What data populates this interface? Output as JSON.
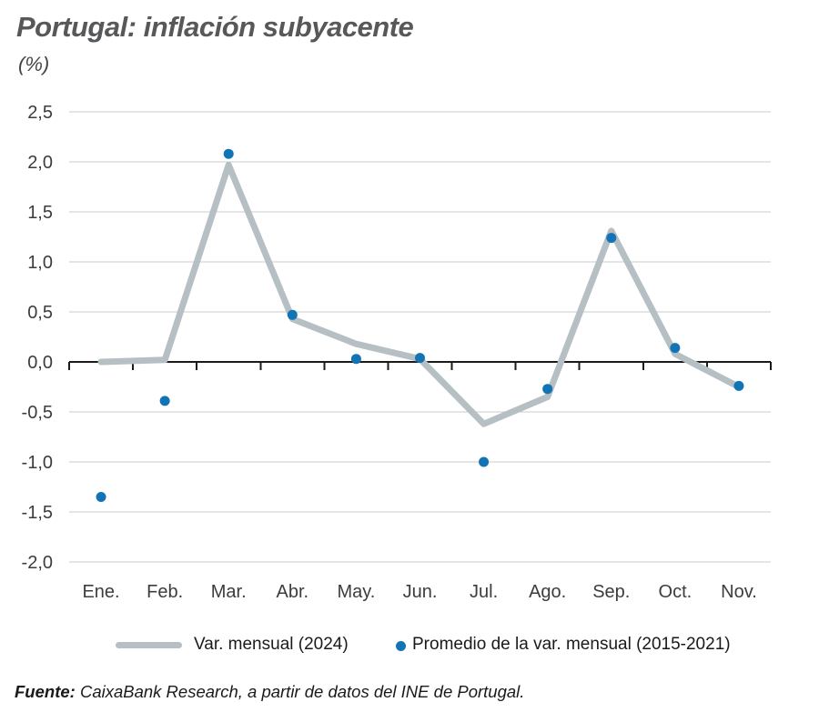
{
  "header": {
    "title": "Portugal: inflación subyacente",
    "unit_label": "(%)"
  },
  "chart_data": {
    "type": "line",
    "title": "Portugal: inflación subyacente",
    "xlabel": "",
    "ylabel": "(%)",
    "categories": [
      "Ene.",
      "Feb.",
      "Mar.",
      "Abr.",
      "May.",
      "Jun.",
      "Jul.",
      "Ago.",
      "Sep.",
      "Oct.",
      "Nov."
    ],
    "series": [
      {
        "name": "Var. mensual (2024)",
        "style": "line",
        "color": "#b5bfc4",
        "values": [
          0.0,
          0.02,
          1.97,
          0.43,
          0.18,
          0.03,
          -0.62,
          -0.35,
          1.31,
          0.08,
          -0.25
        ]
      },
      {
        "name": "Promedio de la var. mensual (2015-2021)",
        "style": "scatter",
        "color": "#1274b5",
        "values": [
          -1.35,
          -0.39,
          2.08,
          0.47,
          0.03,
          0.04,
          -1.0,
          -0.27,
          1.24,
          0.14,
          -0.24
        ]
      }
    ],
    "ylim": [
      -2.0,
      2.5
    ],
    "yticks": [
      2.5,
      2.0,
      1.5,
      1.0,
      0.5,
      0.0,
      -0.5,
      -1.0,
      -1.5,
      -2.0
    ],
    "ytick_labels": [
      "2,5",
      "2,0",
      "1,5",
      "1,0",
      "0,5",
      "0,0",
      "-0,5",
      "-1,0",
      "-1,5",
      "-2,0"
    ],
    "grid": true,
    "legend_position": "bottom"
  },
  "legend": {
    "items": [
      {
        "label": "Var. mensual (2024)",
        "marker": "line-swatch",
        "color": "#b5bfc4"
      },
      {
        "label": "Promedio de la var. mensual (2015-2021)",
        "marker": "dot",
        "color": "#1274b5"
      }
    ]
  },
  "footer": {
    "source_label": "Fuente:",
    "source_text": " CaixaBank Research, a partir de datos del INE de Portugal."
  },
  "colors": {
    "background": "#ffffff",
    "title": "#57585a",
    "grid": "#c9cccd",
    "axis": "#1a1a1a",
    "tick_text": "#3c3c3c",
    "line_series": "#b5bfc4",
    "dot_series": "#1274b5"
  }
}
